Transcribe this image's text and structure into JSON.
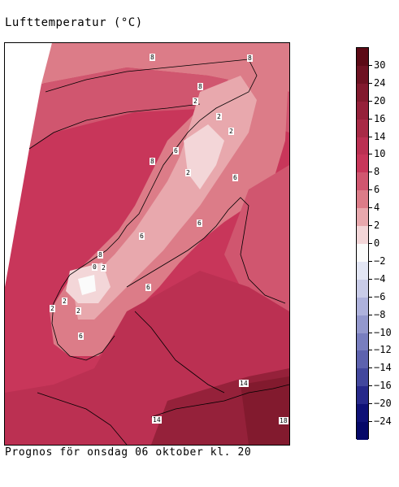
{
  "title": "Lufttemperatur (°C)",
  "caption": "Prognos för onsdag 06 oktober kl. 20",
  "legend": {
    "labels": [
      "30",
      "24",
      "20",
      "16",
      "14",
      "10",
      "8",
      "6",
      "4",
      "2",
      "0",
      "−2",
      "−4",
      "−6",
      "−8",
      "−10",
      "−12",
      "−14",
      "−16",
      "−20",
      "−24"
    ],
    "colors": [
      "#5c0a16",
      "#6e1222",
      "#821a2e",
      "#95213a",
      "#a82a46",
      "#bb3052",
      "#c8365a",
      "#d0566f",
      "#dc7c88",
      "#e8a8ad",
      "#f3d6d8",
      "#fbfbfb",
      "#e3e6f4",
      "#c9cce8",
      "#aeb2dc",
      "#9398cd",
      "#787ebf",
      "#5d62ae",
      "#42479d",
      "#27298a",
      "#0f1176",
      "#050868"
    ]
  },
  "isolines": [
    "8",
    "8",
    "8",
    "2",
    "2",
    "2",
    "6",
    "2",
    "8",
    "6",
    "6",
    "6",
    "6",
    "8",
    "0",
    "2",
    "2",
    "2",
    "6",
    "14",
    "14",
    "18",
    "2"
  ]
}
